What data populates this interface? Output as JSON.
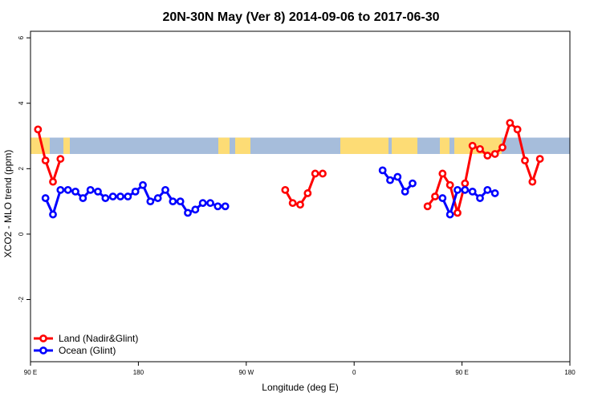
{
  "chart_data": {
    "type": "line",
    "title": "20N-30N May (Ver 8)   2014-09-06 to 2017-06-30",
    "xlabel": "Longitude (deg E)",
    "ylabel": "XCO2 - MLO trend (ppm)",
    "xlim": [
      90,
      450
    ],
    "ylim": [
      -3.9,
      6.2
    ],
    "xticks": [
      {
        "value": 90,
        "label": "90 E"
      },
      {
        "value": 180,
        "label": "180"
      },
      {
        "value": 270,
        "label": "90 W"
      },
      {
        "value": 360,
        "label": "0"
      },
      {
        "value": 450,
        "label": "90 E"
      },
      {
        "value": 540,
        "label": "180"
      }
    ],
    "yticks": [
      {
        "value": -2,
        "label": "-2"
      },
      {
        "value": 0,
        "label": "0"
      },
      {
        "value": 2,
        "label": "2"
      },
      {
        "value": 4,
        "label": "4"
      },
      {
        "value": 6,
        "label": "6"
      }
    ],
    "grid": false,
    "legend_position": "bottom-left",
    "map_band": {
      "ymin": 2.45,
      "ymax": 2.95,
      "ocean_color": "#a6bddb",
      "land_color": "#fddc75"
    },
    "series": [
      {
        "name": "Land (Nadir&Glint)",
        "color": "#ff0000",
        "x": [
          95,
          100,
          105,
          110,
          null,
          260,
          265,
          270,
          275,
          280,
          285,
          290,
          null,
          355,
          360,
          365,
          370,
          375,
          380,
          385,
          390,
          395,
          400,
          405,
          410,
          415,
          420,
          425,
          430,
          435,
          440
        ],
        "y": [
          3.2,
          2.25,
          1.6,
          2.3,
          null,
          1.35,
          0.95,
          0.9,
          1.25,
          1.85,
          1.85,
          null,
          null,
          0.85,
          1.15,
          1.85,
          1.5,
          0.65,
          1.55,
          2.7,
          2.6,
          2.4,
          2.45,
          2.65,
          3.4,
          3.2,
          2.25,
          1.6,
          2.3,
          null,
          null
        ]
      },
      {
        "name": "Ocean (Glint)",
        "color": "#0000ff",
        "x": [
          100,
          105,
          110,
          115,
          120,
          125,
          130,
          135,
          140,
          145,
          150,
          155,
          160,
          165,
          170,
          175,
          180,
          185,
          190,
          195,
          200,
          205,
          210,
          215,
          220,
          225,
          230,
          235,
          240,
          245,
          250,
          255,
          260,
          265,
          270,
          275,
          280,
          285,
          290,
          295,
          300,
          305,
          310,
          315,
          320,
          325,
          330,
          335,
          340,
          345,
          350,
          355,
          360,
          365,
          370,
          375,
          380,
          385,
          390,
          395,
          400,
          405,
          410,
          415,
          420,
          425,
          430,
          435,
          440,
          445,
          450
        ],
        "y": [
          1.1,
          0.6,
          1.35,
          1.35,
          1.3,
          1.1,
          1.35,
          1.3,
          1.1,
          1.15,
          1.15,
          1.15,
          1.3,
          1.5,
          1.0,
          1.1,
          1.35,
          1.0,
          1.0,
          0.65,
          0.75,
          0.95,
          0.95,
          0.85,
          0.85,
          null,
          null,
          null,
          null,
          null,
          null,
          null,
          null,
          null,
          null,
          null,
          null,
          null,
          null,
          null,
          null,
          null,
          null,
          null,
          null,
          1.95,
          1.65,
          1.75,
          1.3,
          1.55,
          null,
          null,
          null,
          1.1,
          0.6,
          1.35,
          1.35,
          1.3,
          1.1,
          1.35,
          1.25,
          null,
          null,
          null,
          null,
          null,
          null,
          null,
          null,
          null,
          null
        ]
      }
    ]
  }
}
